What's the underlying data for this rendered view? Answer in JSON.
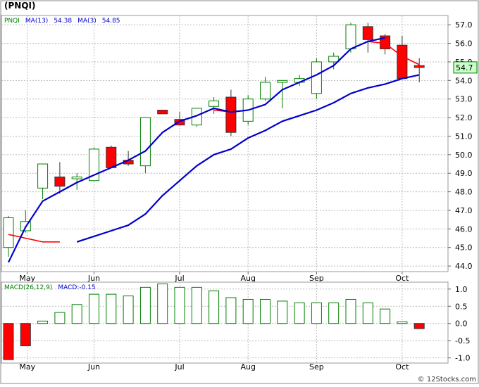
{
  "header": {
    "title": "(PNQI)",
    "watermark": "© 12Stocks.com"
  },
  "chart_data": [
    {
      "type": "candlestick",
      "title": "(PNQI)",
      "legend": [
        {
          "text": "PNQI",
          "color": "#008000"
        },
        {
          "text": "MA(13)",
          "color": "#0000cc"
        },
        {
          "text": "54.38",
          "color": "#0000cc"
        },
        {
          "text": "MA(3)",
          "color": "#0000cc"
        },
        {
          "text": "54.85",
          "color": "#0000cc"
        }
      ],
      "ylim": [
        43.7,
        57.5
      ],
      "yticks": [
        "57.0",
        "56.0",
        "55.0",
        "54.0",
        "53.0",
        "52.0",
        "51.0",
        "50.0",
        "49.0",
        "48.0",
        "47.0",
        "46.0",
        "45.0",
        "44.0"
      ],
      "xticks": [
        "May",
        "Jun",
        "Jul",
        "Aug",
        "Sep",
        "Oct"
      ],
      "last_price": "54.7",
      "grid": true,
      "colors": {
        "up": "#008000",
        "down": "#ff0000",
        "ma13": "#0000cc",
        "ma3": "#ff0000",
        "grid": "#bbbbbb"
      },
      "candles": [
        {
          "o": 45.0,
          "h": 46.7,
          "l": 44.5,
          "c": 46.6
        },
        {
          "o": 45.9,
          "h": 47.0,
          "l": 45.8,
          "c": 46.4
        },
        {
          "o": 48.2,
          "h": 49.5,
          "l": 47.6,
          "c": 49.5
        },
        {
          "o": 48.8,
          "h": 49.6,
          "l": 47.9,
          "c": 48.3
        },
        {
          "o": 48.7,
          "h": 49.0,
          "l": 48.1,
          "c": 48.8
        },
        {
          "o": 48.6,
          "h": 50.4,
          "l": 48.6,
          "c": 50.3
        },
        {
          "o": 50.4,
          "h": 50.5,
          "l": 49.3,
          "c": 49.3
        },
        {
          "o": 49.7,
          "h": 50.2,
          "l": 49.4,
          "c": 49.5
        },
        {
          "o": 49.4,
          "h": 52.0,
          "l": 49.0,
          "c": 52.0
        },
        {
          "o": 52.4,
          "h": 52.4,
          "l": 52.2,
          "c": 52.2
        },
        {
          "o": 51.9,
          "h": 52.3,
          "l": 51.6,
          "c": 51.6
        },
        {
          "o": 51.6,
          "h": 52.5,
          "l": 51.5,
          "c": 52.5
        },
        {
          "o": 52.6,
          "h": 53.1,
          "l": 52.2,
          "c": 52.9
        },
        {
          "o": 53.1,
          "h": 53.5,
          "l": 51.0,
          "c": 51.2
        },
        {
          "o": 51.8,
          "h": 53.2,
          "l": 51.6,
          "c": 53.0
        },
        {
          "o": 53.0,
          "h": 54.2,
          "l": 52.9,
          "c": 53.9
        },
        {
          "o": 53.9,
          "h": 54.0,
          "l": 52.5,
          "c": 54.0
        },
        {
          "o": 53.9,
          "h": 54.3,
          "l": 53.7,
          "c": 54.1
        },
        {
          "o": 53.3,
          "h": 55.2,
          "l": 53.0,
          "c": 55.0
        },
        {
          "o": 55.0,
          "h": 55.5,
          "l": 54.6,
          "c": 55.3
        },
        {
          "o": 55.7,
          "h": 57.1,
          "l": 55.5,
          "c": 57.0
        },
        {
          "o": 56.9,
          "h": 57.1,
          "l": 55.5,
          "c": 56.2
        },
        {
          "o": 56.4,
          "h": 56.5,
          "l": 55.4,
          "c": 55.7
        },
        {
          "o": 55.9,
          "h": 56.4,
          "l": 54.1,
          "c": 54.1
        },
        {
          "o": 54.8,
          "h": 55.2,
          "l": 53.9,
          "c": 54.7
        }
      ],
      "ma13": [
        44.2,
        46.1,
        47.5,
        48.0,
        48.5,
        48.9,
        49.3,
        49.7,
        50.2,
        51.2,
        51.8,
        52.1,
        52.5,
        52.3,
        52.4,
        52.7,
        53.5,
        53.9,
        54.3,
        54.8,
        55.7,
        56.1,
        56.3,
        null,
        null
      ],
      "ma13_lower": [
        null,
        null,
        null,
        null,
        45.3,
        45.6,
        45.9,
        46.2,
        46.8,
        47.8,
        48.6,
        49.4,
        50.0,
        50.3,
        50.9,
        51.3,
        51.8,
        52.1,
        52.4,
        52.8,
        53.3,
        53.6,
        53.8,
        54.1,
        54.3
      ],
      "ma3": [
        45.7,
        45.5,
        45.3,
        45.3,
        null,
        null,
        null,
        null,
        null,
        null,
        null,
        null,
        52.4,
        52.3,
        null,
        null,
        null,
        null,
        null,
        null,
        null,
        56.1,
        56.0,
        55.3,
        54.85
      ]
    },
    {
      "type": "bar",
      "title": "MACD(26,12,9)",
      "legend": [
        {
          "text": "MACD(26,12,9)",
          "color": "#008000"
        },
        {
          "text": "MACD:-0.15",
          "color": "#0000cc"
        }
      ],
      "ylim": [
        -1.15,
        1.2
      ],
      "yticks": [
        "1.0",
        "0.5",
        "0.0",
        "-0.5",
        "-1.0"
      ],
      "xticks": [
        "May",
        "Jun",
        "Jul",
        "Aug",
        "Sep",
        "Oct"
      ],
      "values": [
        -1.05,
        -0.65,
        0.07,
        0.32,
        0.55,
        0.85,
        0.85,
        0.8,
        1.05,
        1.15,
        1.05,
        1.05,
        0.95,
        0.75,
        0.7,
        0.7,
        0.65,
        0.6,
        0.6,
        0.6,
        0.7,
        0.6,
        0.42,
        0.05,
        -0.15
      ]
    }
  ]
}
